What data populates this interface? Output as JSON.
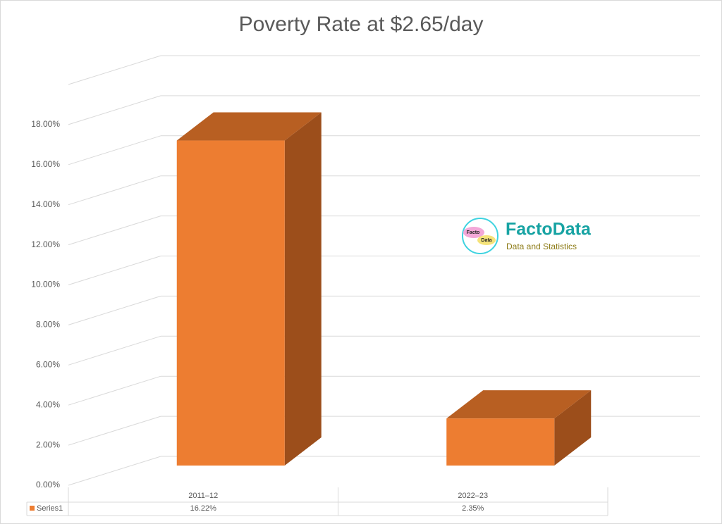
{
  "chart_data": {
    "type": "bar3d",
    "title": "Poverty Rate at $2.65/day",
    "categories": [
      "2011–12",
      "2022–23"
    ],
    "series": [
      {
        "name": "Series1",
        "color": "#ED7D31",
        "values": [
          16.22,
          2.35
        ],
        "value_labels": [
          "16.22%",
          "2.35%"
        ]
      }
    ],
    "ylim": [
      0,
      20
    ],
    "yticks": [
      {
        "value": 0,
        "label": "0.00%"
      },
      {
        "value": 2,
        "label": "2.00%"
      },
      {
        "value": 4,
        "label": "4.00%"
      },
      {
        "value": 6,
        "label": "6.00%"
      },
      {
        "value": 8,
        "label": "8.00%"
      },
      {
        "value": 10,
        "label": "10.00%"
      },
      {
        "value": 12,
        "label": "12.00%"
      },
      {
        "value": 14,
        "label": "14.00%"
      },
      {
        "value": 16,
        "label": "16.00%"
      },
      {
        "value": 18,
        "label": "18.00%"
      }
    ],
    "grid": true
  },
  "watermark": {
    "logo_top": "Facto",
    "logo_bottom": "Data",
    "brand": "FactoData",
    "tagline": "Data and Statistics"
  }
}
